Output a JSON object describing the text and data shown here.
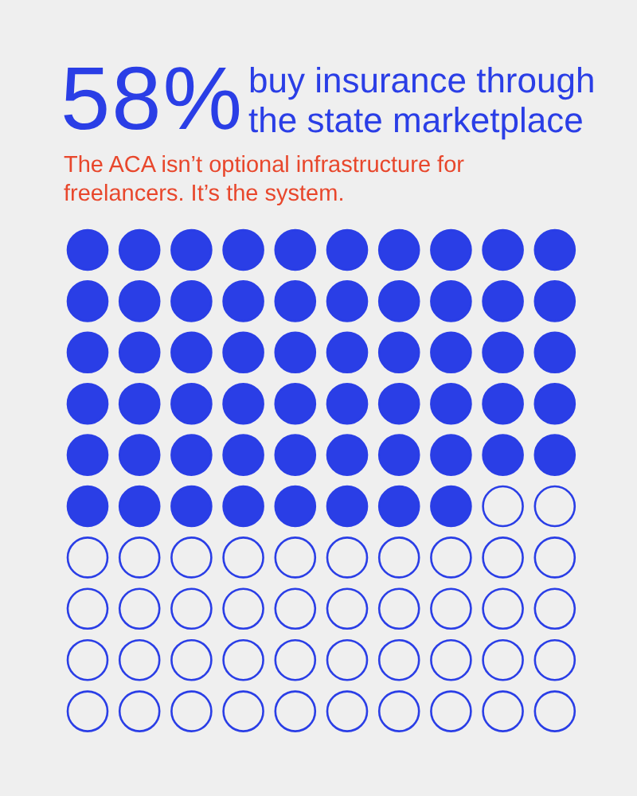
{
  "chart_data": {
    "type": "other",
    "title": "buy insurance through the state marketplace",
    "subtitle": "The ACA isn’t optional infrastructure for freelancers. It’s the system.",
    "values": [
      58
    ],
    "value_labels": [
      "58%"
    ],
    "color": "#2a3ee6"
  }
}
